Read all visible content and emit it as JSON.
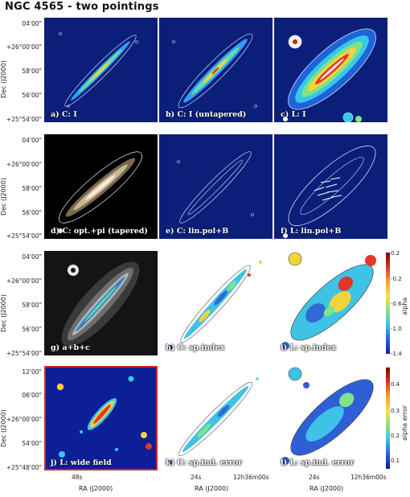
{
  "title": "NGC 4565 - two pointings",
  "y_axis_label": "Dec (J2000)",
  "x_axis_label": "RA (J2000)",
  "rows": [
    {
      "yticks": [
        "04'00\"",
        "+26°00'00\"",
        "58'00\"",
        "56'00\"",
        "+25°54'00\""
      ]
    },
    {
      "yticks": [
        "04'00\"",
        "+26°00'00\"",
        "58'00\"",
        "56'00\"",
        "+25°54'00\""
      ]
    },
    {
      "yticks": [
        "04'00\"",
        "+26°00'00\"",
        "58'00\"",
        "56'00\"",
        "+25°54'00\""
      ]
    },
    {
      "yticks": [
        "12'00\"",
        "06'00\"",
        "+26°00'00\"",
        "54'00\"",
        "+25°48'00\""
      ]
    }
  ],
  "xticks": [
    {
      "col": 0,
      "labels": [
        "48s"
      ]
    },
    {
      "col": 1,
      "labels": [
        "24s",
        "12h36m00s"
      ]
    },
    {
      "col": 2,
      "labels": [
        "24s",
        "12h36m00s"
      ]
    }
  ],
  "panels": [
    {
      "id": "a",
      "label": "a) C: I",
      "style": "blue_thin"
    },
    {
      "id": "b",
      "label": "b) C: I (untapered)",
      "style": "blue_medium"
    },
    {
      "id": "c",
      "label": "c) L: I",
      "style": "blue_wide"
    },
    {
      "id": "d",
      "label": "d) C: opt.+pi (tapered)",
      "style": "optical"
    },
    {
      "id": "e",
      "label": "e) C: lin.pol+B",
      "style": "blue_contour"
    },
    {
      "id": "f",
      "label": "f) L: lin.pol+B",
      "style": "blue_vectors"
    },
    {
      "id": "g",
      "label": "g) a+b+c",
      "style": "grey_composite"
    },
    {
      "id": "h",
      "label": "h) C: sp.index",
      "style": "white_spindex"
    },
    {
      "id": "i",
      "label": "i) L: sp.index",
      "style": "white_spindex_wide"
    },
    {
      "id": "j",
      "label": "j) L: wide field",
      "style": "blue_widefield"
    },
    {
      "id": "k",
      "label": "k) C: sp.ind. error",
      "style": "white_error"
    },
    {
      "id": "l",
      "label": "l) L: sp.ind. error",
      "style": "white_error_wide"
    }
  ],
  "colorbars": [
    {
      "label": "alpha",
      "ticks": [
        "0.2",
        "-0.2",
        "-0.6",
        "-1.0",
        "-1.4"
      ]
    },
    {
      "label": "alpha error",
      "ticks": [
        "0.4",
        "0.3",
        "0.2",
        "0.1"
      ]
    }
  ]
}
